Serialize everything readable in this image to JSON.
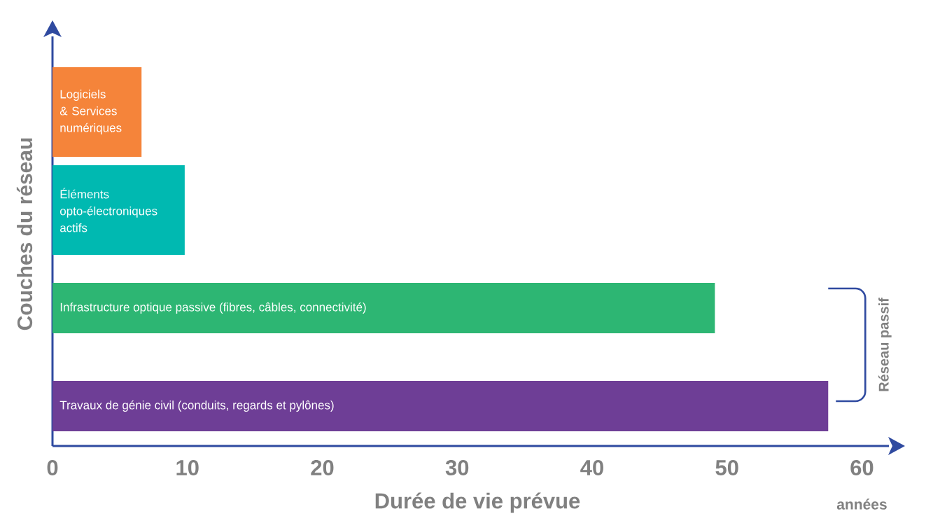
{
  "chart_data": {
    "type": "bar",
    "orientation": "horizontal",
    "categories": [
      "Logiciels & Services numériques",
      "Éléments opto-électroniques actifs",
      "Infrastructure optique passive (fibres, câbles, connectivité)",
      "Travaux de génie civil (conduits, regards et pylônes)"
    ],
    "values": [
      6.6,
      9.8,
      49.1,
      57.5
    ],
    "colors": [
      "#f5843a",
      "#00b9b1",
      "#2db673",
      "#6e3e96"
    ],
    "xlabel": "Durée de vie prévue",
    "ylabel": "Couches du réseau",
    "xlim": [
      0,
      62
    ],
    "xticks": [
      0,
      10,
      20,
      30,
      40,
      50,
      60
    ],
    "annotations": [
      "années",
      "Réseau passif"
    ]
  }
}
